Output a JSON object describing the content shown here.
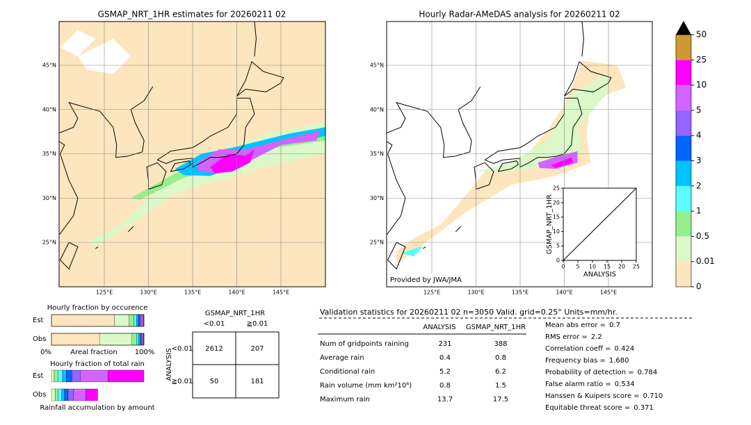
{
  "maps": [
    {
      "title": "GSMAP_NRT_1HR estimates for 20260211 02"
    },
    {
      "title": "Hourly Radar-AMeDAS analysis for 20260211 02",
      "credit": "Provided by JWA/JMA"
    }
  ],
  "lat_labels": [
    "45°N",
    "40°N",
    "35°N",
    "30°N",
    "25°N"
  ],
  "lon_labels": [
    "125°E",
    "130°E",
    "135°E",
    "140°E",
    "145°E"
  ],
  "scatter": {
    "xlabel": "ANALYSIS",
    "ylabel": "GSMAP_NRT_1HR",
    "xlim": [
      0,
      25
    ],
    "ylim": [
      0,
      25
    ],
    "xticks": [
      0,
      5,
      10,
      15,
      20,
      25
    ],
    "yticks": [
      0,
      5,
      10,
      15,
      20,
      25
    ]
  },
  "colorbar": {
    "levels": [
      0,
      0.01,
      0.5,
      1,
      2,
      3,
      4,
      5,
      10,
      25,
      50
    ],
    "colors": [
      "#fde6bd",
      "#dcf8c8",
      "#94f08c",
      "#5cfcfc",
      "#00c4ff",
      "#0064ff",
      "#9664ff",
      "#d264ff",
      "#ff00ff",
      "#cc9933"
    ],
    "over_color": "#000000"
  },
  "fraction": {
    "occurrence": {
      "title": "Hourly fraction by occurence",
      "rows": [
        "Est",
        "Obs"
      ],
      "est": [
        68,
        16,
        5,
        3,
        2,
        1.5,
        1.5,
        2,
        1,
        0
      ],
      "obs": [
        52,
        35,
        5,
        2,
        2,
        1,
        1,
        1.5,
        0.5,
        0
      ],
      "xlabels": [
        "0%",
        "Areal fraction",
        "100%"
      ]
    },
    "total_rain": {
      "title": "Hourly fraction of total rain",
      "rows": [
        "Est",
        "Obs"
      ],
      "est": [
        0,
        3,
        4,
        5,
        4,
        6,
        9,
        30,
        39,
        0
      ],
      "obs": [
        0,
        4,
        3,
        4,
        3,
        4,
        6,
        13,
        13,
        0
      ],
      "footer": "Rainfall accumulation by amount"
    }
  },
  "contingency": {
    "title": "GSMAP_NRT_1HR",
    "cols": [
      "<0.01",
      "≧0.01"
    ],
    "row_title": "ANALYSIS",
    "rows": [
      "<0.01",
      "≧0.01"
    ],
    "cells": [
      [
        2612,
        207
      ],
      [
        50,
        181
      ]
    ]
  },
  "stats": {
    "header": "Validation statistics for 20260211 02  n=3050 Valid. grid=0.25° Units=mm/hr.",
    "columns": [
      "ANALYSIS",
      "GSMAP_NRT_1HR"
    ],
    "rows": [
      {
        "label": "Num of gridpoints raining",
        "values": [
          231,
          388
        ]
      },
      {
        "label": "Average rain",
        "values": [
          0.4,
          0.8
        ]
      },
      {
        "label": "Conditional rain",
        "values": [
          5.2,
          6.2
        ]
      },
      {
        "label": "Rain volume (mm km²10⁶)",
        "values": [
          0.8,
          1.5
        ]
      },
      {
        "label": "Maximum rain",
        "values": [
          13.7,
          17.5
        ]
      }
    ],
    "scores": [
      {
        "label": "Mean abs error =",
        "value": 0.7
      },
      {
        "label": "RMS error =",
        "value": 2.2
      },
      {
        "label": "Correlation coeff =",
        "value": 0.424
      },
      {
        "label": "Frequency bias =",
        "value": 1.68,
        "value_label": "1.680"
      },
      {
        "label": "Probability of detection =",
        "value": 0.784
      },
      {
        "label": "False alarm ratio =",
        "value": 0.534
      },
      {
        "label": "Hanssen & Kuipers score =",
        "value": 0.71,
        "value_label": "0.710"
      },
      {
        "label": "Equitable threat score =",
        "value": 0.371
      }
    ]
  }
}
